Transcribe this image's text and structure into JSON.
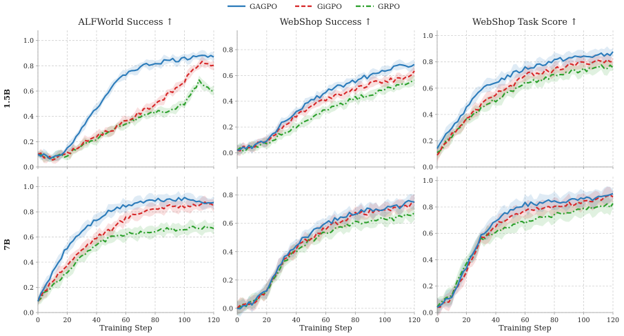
{
  "legend": [
    {
      "name": "GAGPO",
      "color": "#2b7bba",
      "dash": ""
    },
    {
      "name": "GiGPO",
      "color": "#d62728",
      "dash": "6 3"
    },
    {
      "name": "GRPO",
      "color": "#2ca02c",
      "dash": "7 3 2 3"
    }
  ],
  "row_labels": [
    "1.5B",
    "7B"
  ],
  "chart_data": [
    {
      "type": "line",
      "title": "ALFWorld Success ↑",
      "row_label": "1.5B",
      "xlabel": "",
      "xlim": [
        0,
        120
      ],
      "ylim": [
        0,
        1.08
      ],
      "xticks": [
        0,
        20,
        40,
        60,
        80,
        100,
        120
      ],
      "yticks": [
        0.0,
        0.2,
        0.4,
        0.6,
        0.8,
        1.0
      ],
      "xtick_labels_shown": false,
      "band": 0.03,
      "x": [
        0,
        10,
        20,
        30,
        40,
        50,
        60,
        70,
        80,
        90,
        100,
        110,
        120
      ],
      "series": [
        {
          "name": "GAGPO",
          "values": [
            0.1,
            0.07,
            0.14,
            0.32,
            0.47,
            0.62,
            0.74,
            0.79,
            0.82,
            0.84,
            0.85,
            0.89,
            0.86
          ]
        },
        {
          "name": "GiGPO",
          "values": [
            0.1,
            0.07,
            0.1,
            0.18,
            0.25,
            0.29,
            0.36,
            0.43,
            0.5,
            0.58,
            0.68,
            0.82,
            0.81
          ]
        },
        {
          "name": "GRPO",
          "values": [
            0.1,
            0.07,
            0.1,
            0.17,
            0.23,
            0.3,
            0.35,
            0.39,
            0.43,
            0.45,
            0.5,
            0.67,
            0.59
          ]
        }
      ]
    },
    {
      "type": "line",
      "title": "WebShop Success ↑",
      "row_label": "1.5B",
      "xlabel": "",
      "xlim": [
        0,
        120
      ],
      "ylim": [
        -0.11,
        0.95
      ],
      "xticks": [
        0,
        20,
        40,
        60,
        80,
        100,
        120
      ],
      "yticks": [
        0.0,
        0.2,
        0.4,
        0.6,
        0.8
      ],
      "xtick_labels_shown": false,
      "band": 0.03,
      "x": [
        0,
        10,
        20,
        30,
        40,
        50,
        60,
        70,
        80,
        90,
        100,
        110,
        120
      ],
      "series": [
        {
          "name": "GAGPO",
          "values": [
            0.02,
            0.05,
            0.1,
            0.22,
            0.33,
            0.4,
            0.47,
            0.52,
            0.56,
            0.6,
            0.64,
            0.67,
            0.69
          ]
        },
        {
          "name": "GiGPO",
          "values": [
            0.02,
            0.05,
            0.09,
            0.2,
            0.29,
            0.36,
            0.42,
            0.46,
            0.5,
            0.53,
            0.56,
            0.57,
            0.62
          ]
        },
        {
          "name": "GRPO",
          "values": [
            0.02,
            0.04,
            0.07,
            0.15,
            0.21,
            0.27,
            0.33,
            0.38,
            0.42,
            0.45,
            0.49,
            0.52,
            0.56
          ]
        }
      ]
    },
    {
      "type": "line",
      "title": "WebShop Task Score ↑",
      "row_label": "1.5B",
      "xlabel": "",
      "xlim": [
        0,
        120
      ],
      "ylim": [
        0,
        1.04
      ],
      "xticks": [
        0,
        20,
        40,
        60,
        80,
        100,
        120
      ],
      "yticks": [
        0.0,
        0.2,
        0.4,
        0.6,
        0.8,
        1.0
      ],
      "xtick_labels_shown": false,
      "band": 0.04,
      "x": [
        0,
        10,
        20,
        30,
        40,
        50,
        60,
        70,
        80,
        90,
        100,
        110,
        120
      ],
      "series": [
        {
          "name": "GAGPO",
          "values": [
            0.14,
            0.3,
            0.45,
            0.58,
            0.65,
            0.7,
            0.75,
            0.78,
            0.81,
            0.83,
            0.84,
            0.85,
            0.86
          ]
        },
        {
          "name": "GiGPO",
          "values": [
            0.09,
            0.25,
            0.36,
            0.47,
            0.56,
            0.61,
            0.7,
            0.72,
            0.74,
            0.77,
            0.79,
            0.81,
            0.8
          ]
        },
        {
          "name": "GRPO",
          "values": [
            0.11,
            0.24,
            0.35,
            0.44,
            0.51,
            0.58,
            0.63,
            0.66,
            0.7,
            0.72,
            0.74,
            0.76,
            0.77
          ]
        }
      ]
    },
    {
      "type": "line",
      "title": "",
      "row_label": "7B",
      "xlabel": "Training Step",
      "xlim": [
        0,
        120
      ],
      "ylim": [
        0,
        1.08
      ],
      "xticks": [
        0,
        20,
        40,
        60,
        80,
        100,
        120
      ],
      "yticks": [
        0.0,
        0.2,
        0.4,
        0.6,
        0.8,
        1.0
      ],
      "xtick_labels_shown": true,
      "band": 0.04,
      "x": [
        0,
        10,
        20,
        30,
        40,
        50,
        60,
        70,
        80,
        90,
        100,
        110,
        120
      ],
      "series": [
        {
          "name": "GAGPO",
          "values": [
            0.09,
            0.32,
            0.52,
            0.65,
            0.74,
            0.81,
            0.85,
            0.88,
            0.89,
            0.9,
            0.9,
            0.89,
            0.87
          ]
        },
        {
          "name": "GiGPO",
          "values": [
            0.09,
            0.26,
            0.38,
            0.5,
            0.6,
            0.66,
            0.75,
            0.8,
            0.83,
            0.84,
            0.85,
            0.86,
            0.86
          ]
        },
        {
          "name": "GRPO",
          "values": [
            0.09,
            0.22,
            0.32,
            0.45,
            0.55,
            0.6,
            0.62,
            0.64,
            0.65,
            0.66,
            0.67,
            0.68,
            0.66
          ]
        }
      ]
    },
    {
      "type": "line",
      "title": "",
      "row_label": "7B",
      "xlabel": "Training Step",
      "xlim": [
        0,
        120
      ],
      "ylim": [
        -0.03,
        0.93
      ],
      "xticks": [
        0,
        20,
        40,
        60,
        80,
        100,
        120
      ],
      "yticks": [
        0.0,
        0.2,
        0.4,
        0.6,
        0.8
      ],
      "xtick_labels_shown": true,
      "band": 0.04,
      "x": [
        0,
        10,
        20,
        30,
        40,
        50,
        60,
        70,
        80,
        90,
        100,
        110,
        120
      ],
      "series": [
        {
          "name": "GAGPO",
          "values": [
            0.0,
            0.04,
            0.12,
            0.33,
            0.45,
            0.53,
            0.6,
            0.64,
            0.68,
            0.7,
            0.71,
            0.72,
            0.76
          ]
        },
        {
          "name": "GiGPO",
          "values": [
            0.0,
            0.04,
            0.12,
            0.32,
            0.43,
            0.5,
            0.57,
            0.62,
            0.66,
            0.68,
            0.7,
            0.7,
            0.74
          ]
        },
        {
          "name": "GRPO",
          "values": [
            0.0,
            0.04,
            0.11,
            0.31,
            0.41,
            0.48,
            0.53,
            0.57,
            0.6,
            0.62,
            0.63,
            0.64,
            0.68
          ]
        }
      ]
    },
    {
      "type": "line",
      "title": "",
      "row_label": "7B",
      "xlabel": "Training Step",
      "xlim": [
        0,
        120
      ],
      "ylim": [
        0,
        1.03
      ],
      "xticks": [
        0,
        20,
        40,
        60,
        80,
        100,
        120
      ],
      "yticks": [
        0.0,
        0.2,
        0.4,
        0.6,
        0.8,
        1.0
      ],
      "xtick_labels_shown": true,
      "band": 0.05,
      "x": [
        0,
        10,
        20,
        30,
        40,
        50,
        60,
        70,
        80,
        90,
        100,
        110,
        120
      ],
      "series": [
        {
          "name": "GAGPO",
          "values": [
            0.04,
            0.12,
            0.35,
            0.58,
            0.7,
            0.77,
            0.82,
            0.83,
            0.84,
            0.85,
            0.86,
            0.87,
            0.89
          ]
        },
        {
          "name": "GiGPO",
          "values": [
            0.04,
            0.11,
            0.32,
            0.56,
            0.66,
            0.73,
            0.77,
            0.79,
            0.8,
            0.82,
            0.84,
            0.86,
            0.88
          ]
        },
        {
          "name": "GRPO",
          "values": [
            0.04,
            0.14,
            0.38,
            0.55,
            0.62,
            0.66,
            0.69,
            0.72,
            0.74,
            0.76,
            0.78,
            0.8,
            0.81
          ]
        }
      ]
    }
  ]
}
